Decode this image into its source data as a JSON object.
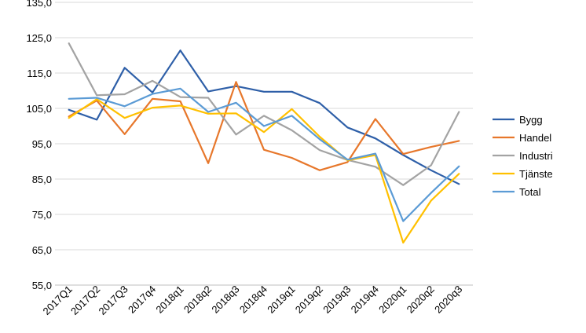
{
  "chart_data": {
    "type": "line",
    "title": "",
    "xlabel": "",
    "ylabel": "",
    "ylim": [
      55,
      135
    ],
    "yticks": [
      "55,0",
      "65,0",
      "75,0",
      "85,0",
      "95,0",
      "105,0",
      "115,0",
      "125,0",
      "135,0"
    ],
    "grid": "horizontal",
    "legend_position": "right",
    "categories": [
      "2017Q1",
      "2017Q2",
      "2017Q3",
      "2017q4",
      "2018q1",
      "2018q2",
      "2018q3",
      "2018q4",
      "2019q1",
      "2019q2",
      "2019q3",
      "2019q4",
      "2020q1",
      "2020q2",
      "2020q3"
    ],
    "series": [
      {
        "name": "Bygg",
        "color": "#2e5fa8",
        "values": [
          104.6,
          101.8,
          116.5,
          109.5,
          121.4,
          109.8,
          111.3,
          109.7,
          109.7,
          106.5,
          99.6,
          96.5,
          91.8,
          87.5,
          83.6
        ]
      },
      {
        "name": "Handel",
        "color": "#e7772b",
        "values": [
          102.7,
          107.2,
          97.7,
          107.7,
          107.0,
          89.5,
          112.5,
          93.3,
          91.0,
          87.5,
          89.8,
          102.0,
          92.1,
          94.1,
          95.8
        ]
      },
      {
        "name": "Industri",
        "color": "#a3a3a3",
        "values": [
          123.4,
          108.7,
          109.0,
          112.8,
          108.2,
          108.0,
          97.6,
          102.9,
          98.8,
          93.2,
          90.4,
          88.5,
          83.3,
          88.9,
          104.0
        ]
      },
      {
        "name": "Tjänste",
        "color": "#ffc000",
        "values": [
          102.3,
          107.6,
          102.3,
          105.2,
          105.8,
          103.5,
          103.6,
          98.3,
          104.8,
          97.0,
          90.3,
          91.8,
          67.0,
          78.9,
          86.5
        ]
      },
      {
        "name": "Total",
        "color": "#5b9bd5",
        "values": [
          107.7,
          108.0,
          105.6,
          109.1,
          110.6,
          104.0,
          106.6,
          100.0,
          102.9,
          96.3,
          90.5,
          92.2,
          73.1,
          81.1,
          88.6
        ]
      }
    ]
  }
}
